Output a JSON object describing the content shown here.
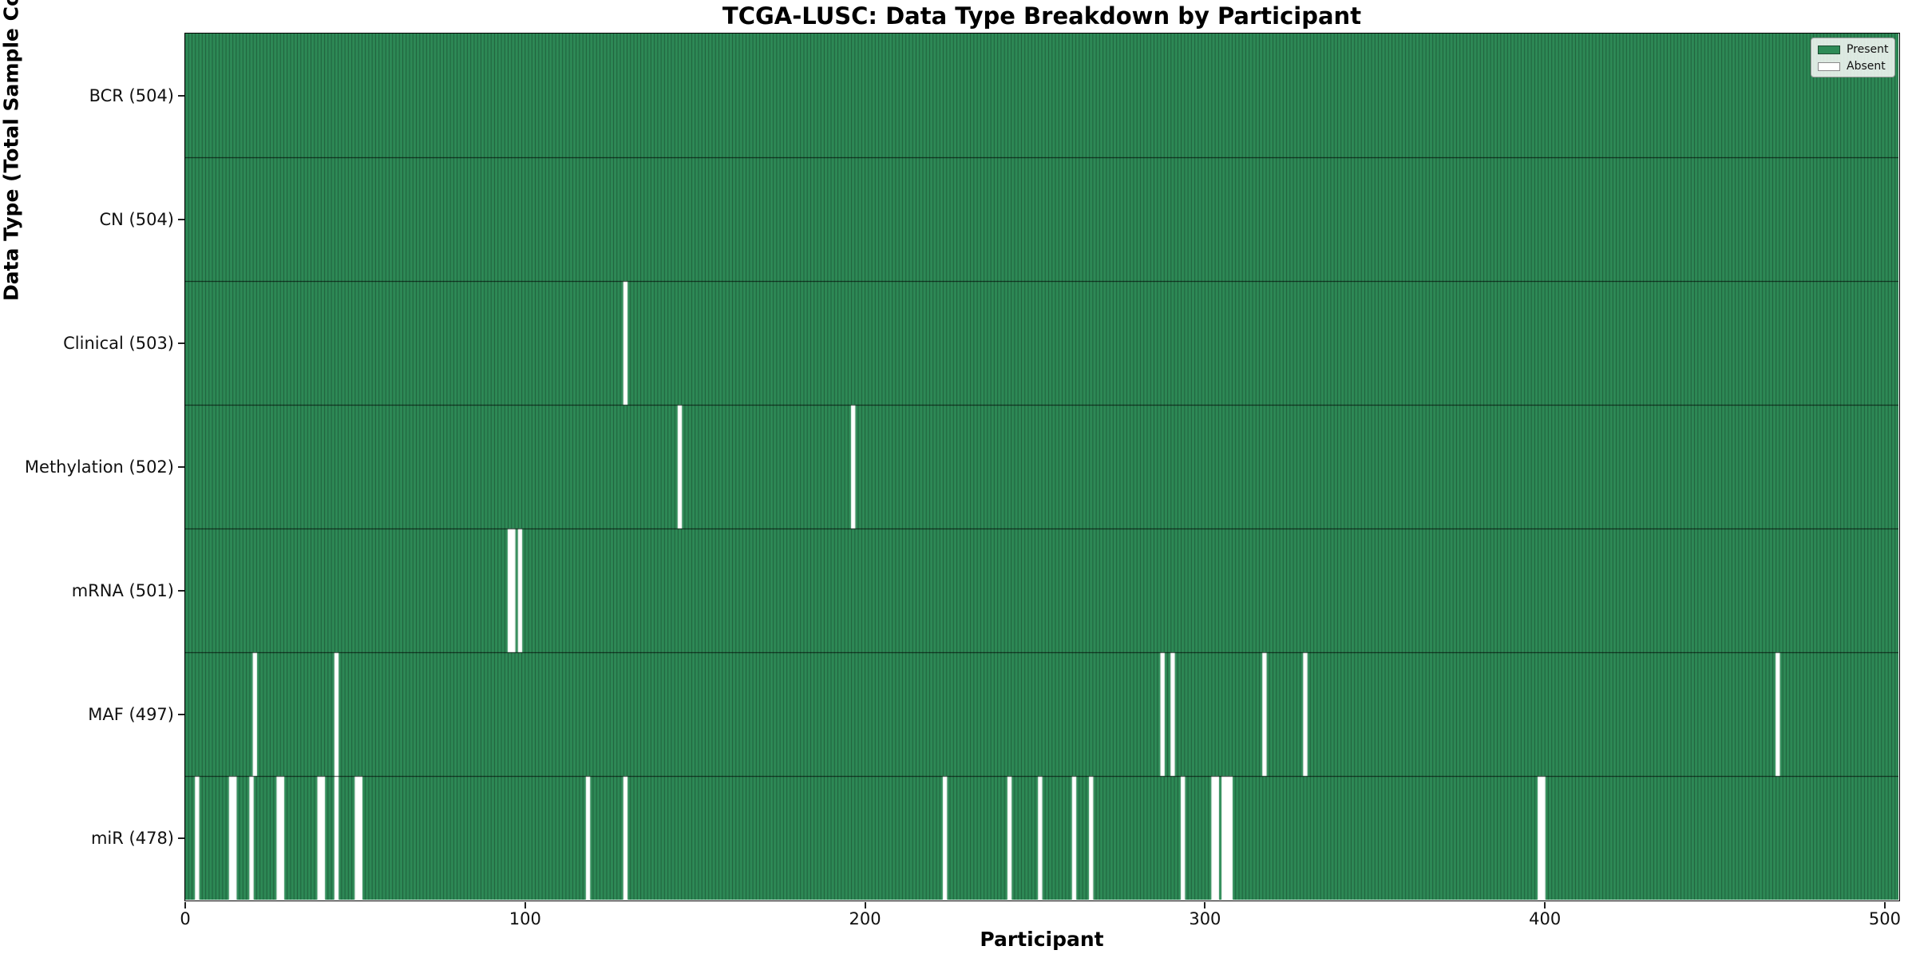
{
  "title": "TCGA-LUSC: Data Type Breakdown by Participant",
  "x_axis_label": "Participant",
  "y_axis_label": "Data Type (Total Sample Count)",
  "legend": {
    "present_label": "Present",
    "absent_label": "Absent"
  },
  "colors": {
    "present": "#2e8b57",
    "absent": "#ffffff",
    "bar_edge": "rgba(0,0,0,0.48)",
    "row_divider": "rgba(0,0,0,0.75)",
    "frame": "#000000",
    "legend_bg": "rgba(252,252,250,0.85)",
    "legend_border": "#9a9a9a"
  },
  "chart_data": {
    "type": "heatmap",
    "title": "TCGA-LUSC: Data Type Breakdown by Participant",
    "xlabel": "Participant",
    "ylabel": "Data Type (Total Sample Count)",
    "xlim": [
      0,
      504
    ],
    "n_participants": 504,
    "x_ticks": [
      0,
      100,
      200,
      300,
      400,
      500
    ],
    "legend_entries": [
      "Present",
      "Absent"
    ],
    "legend_position": "upper right",
    "grid": false,
    "rows": [
      {
        "label": "BCR (504)",
        "data_type": "BCR",
        "total_count": 504,
        "absent_participants": []
      },
      {
        "label": "CN (504)",
        "data_type": "CN",
        "total_count": 504,
        "absent_participants": []
      },
      {
        "label": "Clinical (503)",
        "data_type": "Clinical",
        "total_count": 503,
        "absent_participants": [
          129
        ]
      },
      {
        "label": "Methylation (502)",
        "data_type": "Methylation",
        "total_count": 502,
        "absent_participants": [
          145,
          196
        ]
      },
      {
        "label": "mRNA (501)",
        "data_type": "mRNA",
        "total_count": 501,
        "absent_participants": [
          95,
          96,
          98
        ]
      },
      {
        "label": "MAF (497)",
        "data_type": "MAF",
        "total_count": 497,
        "absent_participants": [
          20,
          44,
          287,
          290,
          317,
          329,
          468
        ]
      },
      {
        "label": "miR (478)",
        "data_type": "miR",
        "total_count": 478,
        "absent_participants": [
          3,
          13,
          14,
          19,
          27,
          28,
          39,
          40,
          44,
          50,
          51,
          118,
          129,
          223,
          242,
          251,
          261,
          266,
          293,
          302,
          303,
          305,
          306,
          307,
          398,
          399
        ]
      }
    ]
  }
}
